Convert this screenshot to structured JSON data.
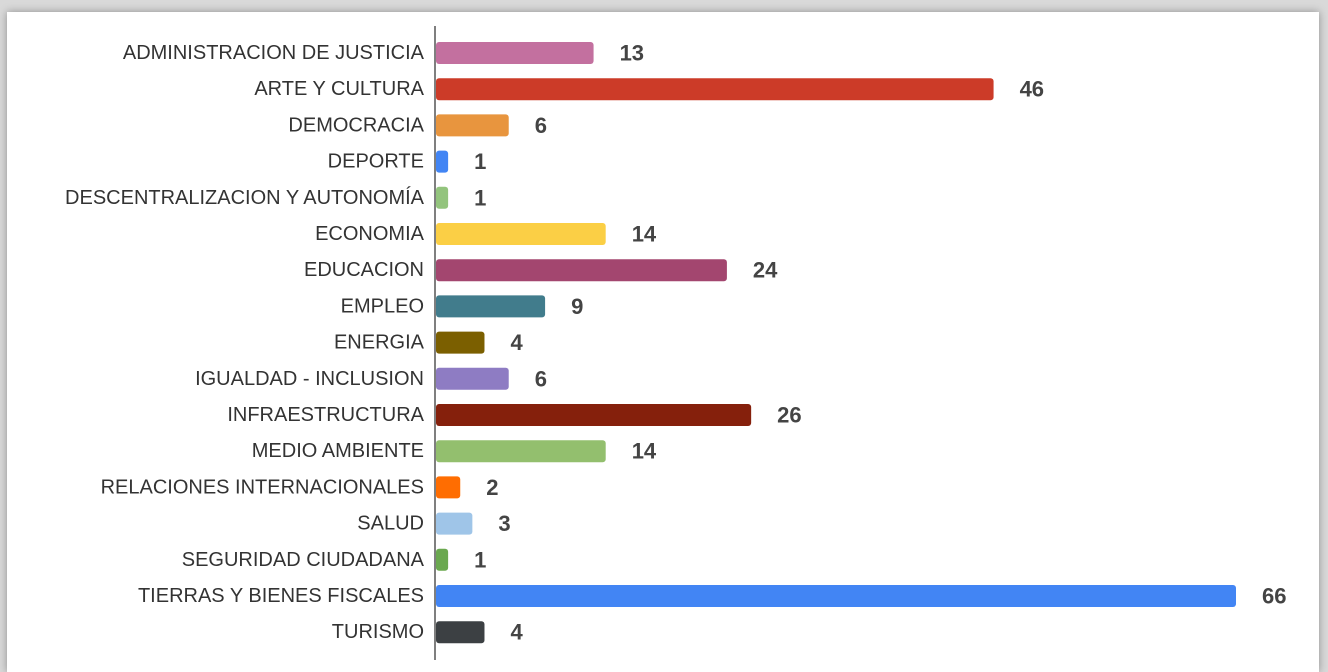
{
  "chart_data": {
    "type": "bar",
    "orientation": "horizontal",
    "categories": [
      "ADMINISTRACION DE JUSTICIA",
      "ARTE Y CULTURA",
      "DEMOCRACIA",
      "DEPORTE",
      "DESCENTRALIZACION Y AUTONOMÍA",
      "ECONOMIA",
      "EDUCACION",
      "EMPLEO",
      "ENERGIA",
      "IGUALDAD - INCLUSION",
      "INFRAESTRUCTURA",
      "MEDIO AMBIENTE",
      "RELACIONES INTERNACIONALES",
      "SALUD",
      "SEGURIDAD CIUDADANA",
      "TIERRAS Y BIENES FISCALES",
      "TURISMO"
    ],
    "values": [
      13,
      46,
      6,
      1,
      1,
      14,
      24,
      9,
      4,
      6,
      26,
      14,
      2,
      3,
      1,
      66,
      4
    ],
    "value_labels": [
      "13",
      "46",
      "6",
      "1",
      "1",
      "14",
      "24",
      "9",
      "4",
      "6",
      "26",
      "14",
      "2",
      "3",
      "1",
      "66",
      "4"
    ],
    "colors": [
      "#c3709f",
      "#cc3b28",
      "#e8953e",
      "#4285f4",
      "#93c47d",
      "#fbcf45",
      "#a3466f",
      "#417c8c",
      "#7b5f00",
      "#8e7cc3",
      "#85200c",
      "#93bf6e",
      "#ff6d01",
      "#9fc5e8",
      "#6aa84f",
      "#4285f4",
      "#3c4043"
    ],
    "xlim": [
      0,
      66
    ],
    "grid": false,
    "legend": "none"
  }
}
